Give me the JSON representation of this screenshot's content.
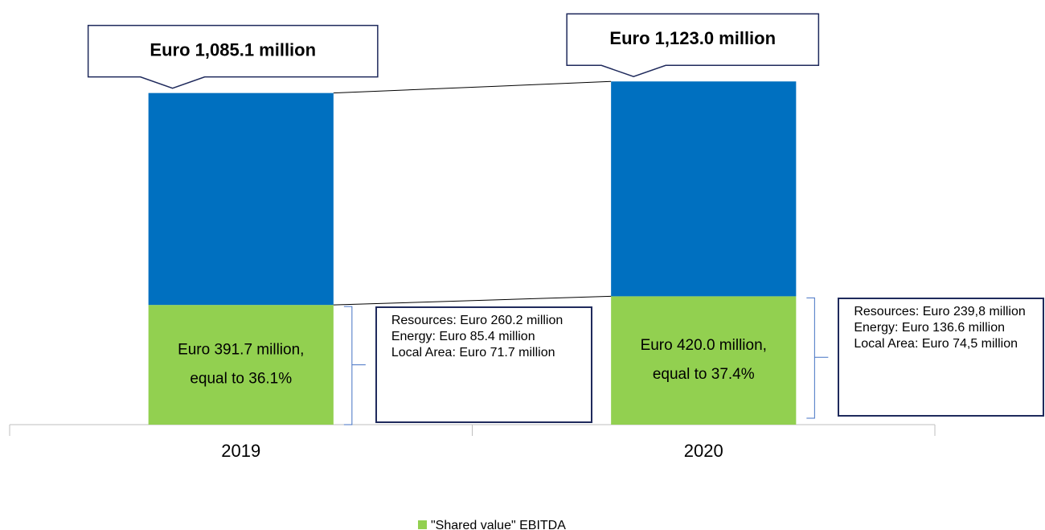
{
  "chart_data": {
    "type": "stacked-bar",
    "categories": [
      "2019",
      "2020"
    ],
    "series": [
      {
        "name": "\"Shared value\" EBITDA",
        "color": "#92d050",
        "values": [
          391.7,
          420.0
        ],
        "value_labels": [
          [
            "Euro 391.7 million,",
            "equal to 36.1%"
          ],
          [
            "Euro 420.0 million,",
            "equal to 37.4%"
          ]
        ]
      },
      {
        "color": "#0070c0",
        "values": [
          693.4,
          703.0
        ]
      }
    ],
    "total_labels": [
      "Euro 1,085.1 million",
      "Euro 1,123.0 million"
    ],
    "breakdowns": [
      [
        "Resources: Euro 260.2 million",
        "Energy: Euro 85.4 million",
        "Local Area: Euro 71.7 million"
      ],
      [
        "Resources: Euro 239,8 million",
        "Energy: Euro 136.6 million",
        "Local Area: Euro 74,5 million"
      ]
    ],
    "ylim": [
      0,
      1150
    ]
  }
}
